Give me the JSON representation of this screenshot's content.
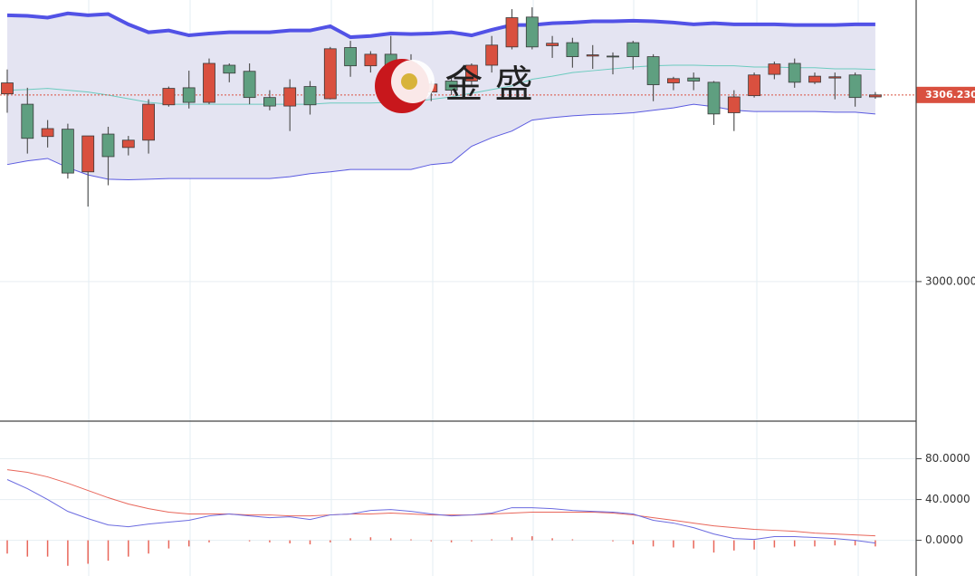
{
  "chart_data": [
    {
      "type": "candlestick",
      "open": [
        3308,
        3291,
        3238,
        3250,
        3180,
        3242,
        3220,
        3232,
        3290,
        3318,
        3294,
        3355,
        3345,
        3302,
        3288,
        3320,
        3300,
        3384,
        3354,
        3373,
        3358,
        3311,
        3329,
        3329,
        3355,
        3385,
        3434,
        3387,
        3392,
        3370,
        3370,
        3392,
        3369,
        3326,
        3334,
        3327,
        3277,
        3305,
        3340,
        3358,
        3327,
        3334,
        3339,
        3303
      ],
      "high": [
        3348,
        3318,
        3265,
        3259,
        3239,
        3254,
        3239,
        3299,
        3320,
        3346,
        3366,
        3358,
        3358,
        3314,
        3332,
        3329,
        3385,
        3395,
        3378,
        3403,
        3373,
        3329,
        3336,
        3358,
        3403,
        3447,
        3450,
        3403,
        3400,
        3388,
        3376,
        3395,
        3373,
        3336,
        3343,
        3329,
        3314,
        3343,
        3361,
        3366,
        3343,
        3343,
        3343,
        3311
      ],
      "low": [
        3277,
        3210,
        3220,
        3169,
        3123,
        3158,
        3207,
        3210,
        3287,
        3284,
        3291,
        3327,
        3291,
        3281,
        3247,
        3274,
        3299,
        3336,
        3343,
        3321,
        3299,
        3296,
        3306,
        3321,
        3343,
        3381,
        3381,
        3367,
        3351,
        3349,
        3340,
        3348,
        3296,
        3314,
        3314,
        3257,
        3247,
        3302,
        3332,
        3318,
        3324,
        3299,
        3287,
        3300
      ],
      "close": [
        3326,
        3235,
        3251,
        3178,
        3239,
        3205,
        3232,
        3291,
        3317,
        3294,
        3358,
        3342,
        3302,
        3288,
        3318,
        3290,
        3382,
        3354,
        3373,
        3351,
        3311,
        3324,
        3314,
        3355,
        3388,
        3433,
        3385,
        3391,
        3369,
        3372,
        3369,
        3369,
        3323,
        3333,
        3329,
        3275,
        3303,
        3339,
        3357,
        3327,
        3337,
        3336,
        3302,
        3306.23
      ],
      "up_color": "#d9503f",
      "down_color": "#5f9f80",
      "series": [
        {
          "color": "#5252e6",
          "values": [
            3437,
            3436,
            3433,
            3440,
            3437,
            3439,
            3422,
            3409,
            3412,
            3404,
            3407,
            3409,
            3409,
            3409,
            3412,
            3412,
            3419,
            3401,
            3403,
            3407,
            3406,
            3407,
            3409,
            3404,
            3413,
            3421,
            3421,
            3424,
            3425,
            3427,
            3427,
            3428,
            3427,
            3425,
            3422,
            3424,
            3422,
            3422,
            3422,
            3421,
            3421,
            3421,
            3422,
            3422
          ]
        },
        {
          "color": "#6ccbbf",
          "values": [
            3314,
            3315,
            3317,
            3314,
            3311,
            3306,
            3300,
            3294,
            3291,
            3291,
            3291,
            3291,
            3291,
            3291,
            3291,
            3291,
            3293,
            3293,
            3293,
            3294,
            3294,
            3299,
            3303,
            3309,
            3315,
            3321,
            3332,
            3337,
            3343,
            3346,
            3349,
            3352,
            3354,
            3355,
            3355,
            3354,
            3354,
            3352,
            3352,
            3351,
            3351,
            3349,
            3349,
            3348
          ]
        },
        {
          "color": "#5a5ae0",
          "values": [
            3192,
            3198,
            3202,
            3187,
            3175,
            3168,
            3167,
            3168,
            3169,
            3169,
            3169,
            3169,
            3169,
            3169,
            3172,
            3177,
            3180,
            3184,
            3184,
            3184,
            3184,
            3192,
            3195,
            3222,
            3236,
            3247,
            3265,
            3269,
            3272,
            3274,
            3275,
            3277,
            3281,
            3285,
            3291,
            3287,
            3281,
            3279,
            3279,
            3279,
            3279,
            3278,
            3278,
            3275
          ]
        }
      ],
      "band_fill": "#e4e4f2",
      "last_price": {
        "value": 3306.23,
        "label": "3306.230"
      },
      "ylim": [
        2771,
        3462
      ],
      "yticks": [
        {
          "value": 3000,
          "label": "3000.000"
        }
      ],
      "watermark": "金 盛"
    },
    {
      "type": "macd",
      "series": [
        {
          "color": "#e8665a",
          "values": [
            69.3,
            66.7,
            62.2,
            56,
            48.9,
            41.8,
            35.6,
            31.1,
            27.6,
            25.8,
            25.8,
            25.8,
            24.9,
            24.9,
            24,
            24,
            24.9,
            25.8,
            25.8,
            26.7,
            25.8,
            24.9,
            24.9,
            24.9,
            25.8,
            26.7,
            27.6,
            27.6,
            27.6,
            27.6,
            26.7,
            24.9,
            22.2,
            19.6,
            16.9,
            14.2,
            12.4,
            10.7,
            9.8,
            8.9,
            7.1,
            6.2,
            5.3,
            4.4
          ]
        },
        {
          "color": "#6b6be0",
          "values": [
            59.6,
            50.7,
            40,
            28.4,
            21.3,
            15.1,
            13.3,
            16,
            17.8,
            19.6,
            24,
            25.8,
            24,
            22.2,
            23.1,
            20.4,
            24.9,
            25.8,
            29.3,
            30.2,
            28.4,
            25.8,
            24,
            24.9,
            26.7,
            32,
            32,
            31.1,
            29.3,
            28.4,
            27.6,
            25.8,
            19.6,
            16.9,
            12.4,
            6.2,
            1.8,
            0.9,
            3.6,
            3.6,
            2.7,
            1.8,
            0,
            -2.7
          ]
        }
      ],
      "histogram": {
        "color": "#e8665a",
        "values": [
          -13,
          -16,
          -16,
          -25,
          -23,
          -20,
          -16,
          -13,
          -8,
          -6,
          -2,
          0,
          -1,
          -2,
          -3,
          -4,
          -2,
          2,
          3,
          2,
          1,
          -1,
          -2,
          -1,
          1,
          3,
          4,
          2,
          1,
          0,
          -1,
          -4,
          -6,
          -7,
          -8,
          -12,
          -10,
          -9,
          -7,
          -6,
          -6,
          -5,
          -5,
          -6
        ]
      },
      "ylim": [
        -35,
        116
      ],
      "yticks": [
        {
          "value": 80,
          "label": "80.0000"
        },
        {
          "value": 40,
          "label": "40.0000"
        },
        {
          "value": 0,
          "label": "0.0000"
        }
      ]
    }
  ]
}
